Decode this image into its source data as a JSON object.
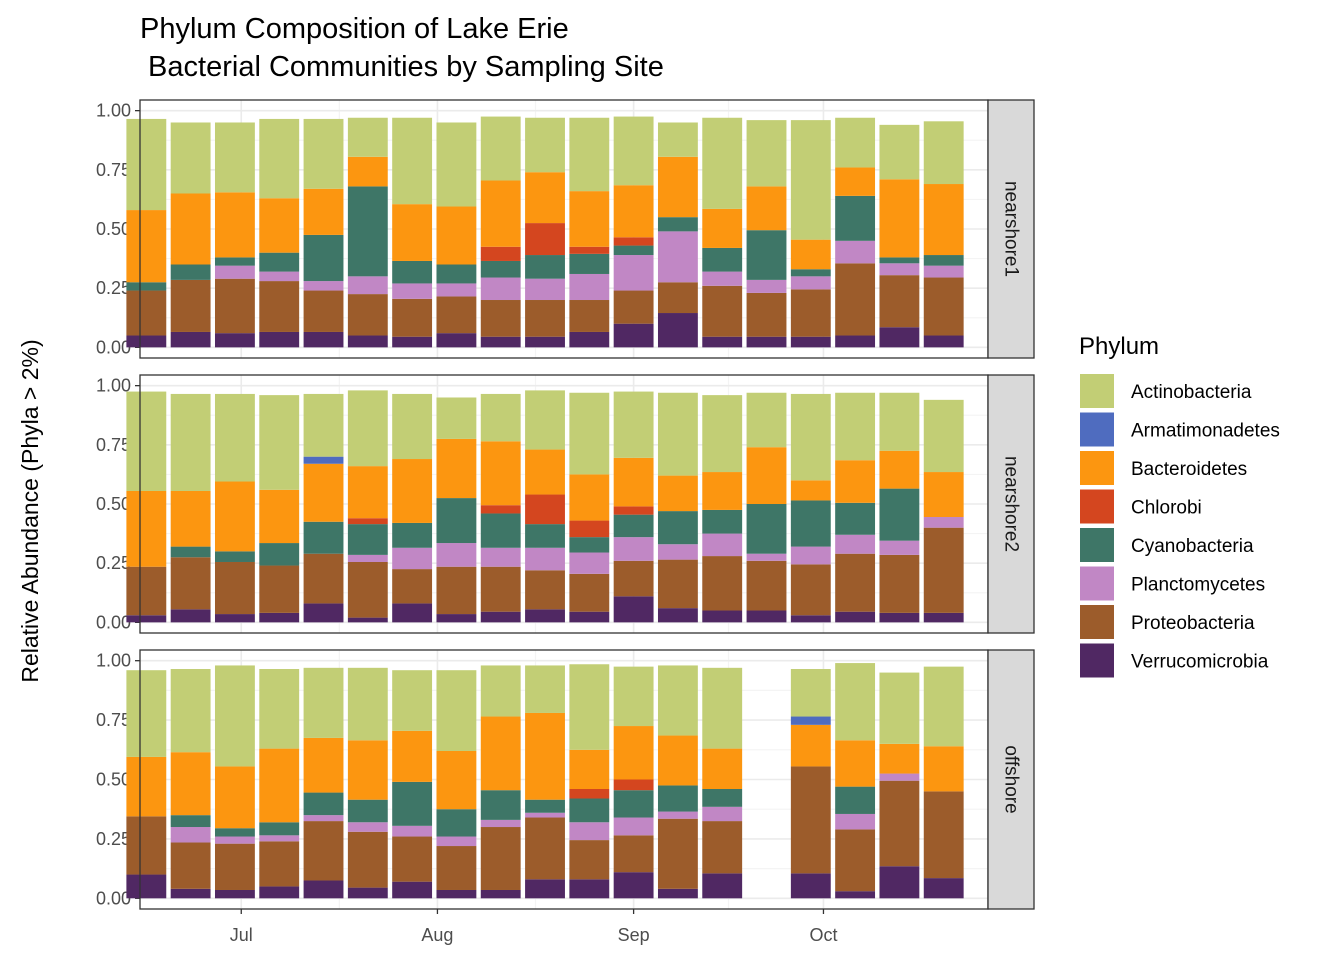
{
  "chart_data": {
    "type": "bar",
    "stacked": true,
    "title_lines": [
      "Phylum Composition of Lake Erie",
      " Bacterial Communities by Sampling Site"
    ],
    "xlabel": "",
    "ylabel": "Relative Abundance (Phyla > 2%)",
    "ylim": [
      0,
      1.0
    ],
    "yticks": [
      "0.00",
      "0.25",
      "0.50",
      "0.75",
      "1.00"
    ],
    "xaxis": {
      "type": "date",
      "range": [
        "2014-06-15",
        "2014-10-27"
      ],
      "ticks": [
        {
          "date": "2014-07-01",
          "label": "Jul"
        },
        {
          "date": "2014-08-01",
          "label": "Aug"
        },
        {
          "date": "2014-09-01",
          "label": "Sep"
        },
        {
          "date": "2014-10-01",
          "label": "Oct"
        }
      ]
    },
    "grid": true,
    "legend": {
      "title": "Phylum",
      "position": "right",
      "entries": [
        "Actinobacteria",
        "Armatimonadetes",
        "Bacteroidetes",
        "Chlorobi",
        "Cyanobacteria",
        "Planctomycetes",
        "Proteobacteria",
        "Verrucomicrobia"
      ]
    },
    "colors": {
      "Actinobacteria": "#c2ce75",
      "Armatimonadetes": "#4f6cbf",
      "Bacteroidetes": "#fc9610",
      "Chlorobi": "#d4461f",
      "Cyanobacteria": "#3e7667",
      "Planctomycetes": "#c187c5",
      "Proteobacteria": "#9c5c2b",
      "Verrucomicrobia": "#502863"
    },
    "stack_order": [
      "Verrucomicrobia",
      "Proteobacteria",
      "Planctomycetes",
      "Cyanobacteria",
      "Chlorobi",
      "Bacteroidetes",
      "Armatimonadetes",
      "Actinobacteria"
    ],
    "dates": [
      "2014-06-16",
      "2014-06-23",
      "2014-06-30",
      "2014-07-07",
      "2014-07-14",
      "2014-07-21",
      "2014-07-28",
      "2014-08-04",
      "2014-08-11",
      "2014-08-18",
      "2014-08-25",
      "2014-09-01",
      "2014-09-08",
      "2014-09-15",
      "2014-09-22",
      "2014-09-29",
      "2014-10-06",
      "2014-10-13",
      "2014-10-20"
    ],
    "facets": [
      {
        "name": "nearshore1",
        "bars": [
          {
            "Verrucomicrobia": 0.05,
            "Proteobacteria": 0.19,
            "Planctomycetes": 0.0,
            "Cyanobacteria": 0.035,
            "Chlorobi": 0.0,
            "Bacteroidetes": 0.305,
            "Armatimonadetes": 0.0,
            "Actinobacteria": 0.385
          },
          {
            "Verrucomicrobia": 0.065,
            "Proteobacteria": 0.22,
            "Planctomycetes": 0.0,
            "Cyanobacteria": 0.065,
            "Chlorobi": 0.0,
            "Bacteroidetes": 0.3,
            "Armatimonadetes": 0.0,
            "Actinobacteria": 0.3
          },
          {
            "Verrucomicrobia": 0.06,
            "Proteobacteria": 0.23,
            "Planctomycetes": 0.055,
            "Cyanobacteria": 0.035,
            "Chlorobi": 0.0,
            "Bacteroidetes": 0.275,
            "Armatimonadetes": 0.0,
            "Actinobacteria": 0.295
          },
          {
            "Verrucomicrobia": 0.065,
            "Proteobacteria": 0.215,
            "Planctomycetes": 0.04,
            "Cyanobacteria": 0.08,
            "Chlorobi": 0.0,
            "Bacteroidetes": 0.23,
            "Armatimonadetes": 0.0,
            "Actinobacteria": 0.335
          },
          {
            "Verrucomicrobia": 0.065,
            "Proteobacteria": 0.175,
            "Planctomycetes": 0.04,
            "Cyanobacteria": 0.195,
            "Chlorobi": 0.0,
            "Bacteroidetes": 0.195,
            "Armatimonadetes": 0.0,
            "Actinobacteria": 0.295
          },
          {
            "Verrucomicrobia": 0.05,
            "Proteobacteria": 0.175,
            "Planctomycetes": 0.075,
            "Cyanobacteria": 0.38,
            "Chlorobi": 0.0,
            "Bacteroidetes": 0.125,
            "Armatimonadetes": 0.0,
            "Actinobacteria": 0.165
          },
          {
            "Verrucomicrobia": 0.045,
            "Proteobacteria": 0.16,
            "Planctomycetes": 0.065,
            "Cyanobacteria": 0.095,
            "Chlorobi": 0.0,
            "Bacteroidetes": 0.24,
            "Armatimonadetes": 0.0,
            "Actinobacteria": 0.365
          },
          {
            "Verrucomicrobia": 0.06,
            "Proteobacteria": 0.155,
            "Planctomycetes": 0.055,
            "Cyanobacteria": 0.08,
            "Chlorobi": 0.0,
            "Bacteroidetes": 0.245,
            "Armatimonadetes": 0.0,
            "Actinobacteria": 0.355
          },
          {
            "Verrucomicrobia": 0.045,
            "Proteobacteria": 0.155,
            "Planctomycetes": 0.095,
            "Cyanobacteria": 0.07,
            "Chlorobi": 0.06,
            "Bacteroidetes": 0.28,
            "Armatimonadetes": 0.0,
            "Actinobacteria": 0.27
          },
          {
            "Verrucomicrobia": 0.045,
            "Proteobacteria": 0.155,
            "Planctomycetes": 0.09,
            "Cyanobacteria": 0.1,
            "Chlorobi": 0.135,
            "Bacteroidetes": 0.215,
            "Armatimonadetes": 0.0,
            "Actinobacteria": 0.23
          },
          {
            "Verrucomicrobia": 0.065,
            "Proteobacteria": 0.135,
            "Planctomycetes": 0.11,
            "Cyanobacteria": 0.085,
            "Chlorobi": 0.03,
            "Bacteroidetes": 0.235,
            "Armatimonadetes": 0.0,
            "Actinobacteria": 0.31
          },
          {
            "Verrucomicrobia": 0.1,
            "Proteobacteria": 0.14,
            "Planctomycetes": 0.15,
            "Cyanobacteria": 0.04,
            "Chlorobi": 0.035,
            "Bacteroidetes": 0.22,
            "Armatimonadetes": 0.0,
            "Actinobacteria": 0.29
          },
          {
            "Verrucomicrobia": 0.145,
            "Proteobacteria": 0.13,
            "Planctomycetes": 0.215,
            "Cyanobacteria": 0.06,
            "Chlorobi": 0.0,
            "Bacteroidetes": 0.255,
            "Armatimonadetes": 0.0,
            "Actinobacteria": 0.145
          },
          {
            "Verrucomicrobia": 0.045,
            "Proteobacteria": 0.215,
            "Planctomycetes": 0.06,
            "Cyanobacteria": 0.1,
            "Chlorobi": 0.0,
            "Bacteroidetes": 0.165,
            "Armatimonadetes": 0.0,
            "Actinobacteria": 0.385
          },
          {
            "Verrucomicrobia": 0.045,
            "Proteobacteria": 0.185,
            "Planctomycetes": 0.055,
            "Cyanobacteria": 0.21,
            "Chlorobi": 0.0,
            "Bacteroidetes": 0.185,
            "Armatimonadetes": 0.0,
            "Actinobacteria": 0.28
          },
          {
            "Verrucomicrobia": 0.045,
            "Proteobacteria": 0.2,
            "Planctomycetes": 0.055,
            "Cyanobacteria": 0.03,
            "Chlorobi": 0.0,
            "Bacteroidetes": 0.125,
            "Armatimonadetes": 0.0,
            "Actinobacteria": 0.505
          },
          {
            "Verrucomicrobia": 0.05,
            "Proteobacteria": 0.305,
            "Planctomycetes": 0.095,
            "Cyanobacteria": 0.19,
            "Chlorobi": 0.0,
            "Bacteroidetes": 0.12,
            "Armatimonadetes": 0.0,
            "Actinobacteria": 0.21
          },
          {
            "Verrucomicrobia": 0.085,
            "Proteobacteria": 0.22,
            "Planctomycetes": 0.05,
            "Cyanobacteria": 0.025,
            "Chlorobi": 0.0,
            "Bacteroidetes": 0.33,
            "Armatimonadetes": 0.0,
            "Actinobacteria": 0.23
          },
          {
            "Verrucomicrobia": 0.05,
            "Proteobacteria": 0.245,
            "Planctomycetes": 0.05,
            "Cyanobacteria": 0.045,
            "Chlorobi": 0.0,
            "Bacteroidetes": 0.3,
            "Armatimonadetes": 0.0,
            "Actinobacteria": 0.265
          }
        ]
      },
      {
        "name": "nearshore2",
        "bars": [
          {
            "Verrucomicrobia": 0.03,
            "Proteobacteria": 0.205,
            "Planctomycetes": 0.0,
            "Cyanobacteria": 0.0,
            "Chlorobi": 0.0,
            "Bacteroidetes": 0.32,
            "Armatimonadetes": 0.0,
            "Actinobacteria": 0.42
          },
          {
            "Verrucomicrobia": 0.055,
            "Proteobacteria": 0.22,
            "Planctomycetes": 0.0,
            "Cyanobacteria": 0.045,
            "Chlorobi": 0.0,
            "Bacteroidetes": 0.235,
            "Armatimonadetes": 0.0,
            "Actinobacteria": 0.41
          },
          {
            "Verrucomicrobia": 0.035,
            "Proteobacteria": 0.22,
            "Planctomycetes": 0.0,
            "Cyanobacteria": 0.045,
            "Chlorobi": 0.0,
            "Bacteroidetes": 0.295,
            "Armatimonadetes": 0.0,
            "Actinobacteria": 0.37
          },
          {
            "Verrucomicrobia": 0.04,
            "Proteobacteria": 0.2,
            "Planctomycetes": 0.0,
            "Cyanobacteria": 0.095,
            "Chlorobi": 0.0,
            "Bacteroidetes": 0.225,
            "Armatimonadetes": 0.0,
            "Actinobacteria": 0.4
          },
          {
            "Verrucomicrobia": 0.08,
            "Proteobacteria": 0.21,
            "Planctomycetes": 0.0,
            "Cyanobacteria": 0.135,
            "Chlorobi": 0.0,
            "Bacteroidetes": 0.245,
            "Armatimonadetes": 0.03,
            "Actinobacteria": 0.265
          },
          {
            "Verrucomicrobia": 0.02,
            "Proteobacteria": 0.235,
            "Planctomycetes": 0.03,
            "Cyanobacteria": 0.13,
            "Chlorobi": 0.025,
            "Bacteroidetes": 0.22,
            "Armatimonadetes": 0.0,
            "Actinobacteria": 0.32
          },
          {
            "Verrucomicrobia": 0.08,
            "Proteobacteria": 0.145,
            "Planctomycetes": 0.09,
            "Cyanobacteria": 0.105,
            "Chlorobi": 0.0,
            "Bacteroidetes": 0.27,
            "Armatimonadetes": 0.0,
            "Actinobacteria": 0.275
          },
          {
            "Verrucomicrobia": 0.035,
            "Proteobacteria": 0.2,
            "Planctomycetes": 0.1,
            "Cyanobacteria": 0.19,
            "Chlorobi": 0.0,
            "Bacteroidetes": 0.25,
            "Armatimonadetes": 0.0,
            "Actinobacteria": 0.175
          },
          {
            "Verrucomicrobia": 0.045,
            "Proteobacteria": 0.19,
            "Planctomycetes": 0.08,
            "Cyanobacteria": 0.145,
            "Chlorobi": 0.035,
            "Bacteroidetes": 0.27,
            "Armatimonadetes": 0.0,
            "Actinobacteria": 0.2
          },
          {
            "Verrucomicrobia": 0.055,
            "Proteobacteria": 0.165,
            "Planctomycetes": 0.095,
            "Cyanobacteria": 0.1,
            "Chlorobi": 0.125,
            "Bacteroidetes": 0.19,
            "Armatimonadetes": 0.0,
            "Actinobacteria": 0.25
          },
          {
            "Verrucomicrobia": 0.045,
            "Proteobacteria": 0.16,
            "Planctomycetes": 0.09,
            "Cyanobacteria": 0.065,
            "Chlorobi": 0.07,
            "Bacteroidetes": 0.195,
            "Armatimonadetes": 0.0,
            "Actinobacteria": 0.345
          },
          {
            "Verrucomicrobia": 0.11,
            "Proteobacteria": 0.15,
            "Planctomycetes": 0.1,
            "Cyanobacteria": 0.095,
            "Chlorobi": 0.035,
            "Bacteroidetes": 0.205,
            "Armatimonadetes": 0.0,
            "Actinobacteria": 0.28
          },
          {
            "Verrucomicrobia": 0.06,
            "Proteobacteria": 0.205,
            "Planctomycetes": 0.065,
            "Cyanobacteria": 0.14,
            "Chlorobi": 0.0,
            "Bacteroidetes": 0.15,
            "Armatimonadetes": 0.0,
            "Actinobacteria": 0.35
          },
          {
            "Verrucomicrobia": 0.05,
            "Proteobacteria": 0.23,
            "Planctomycetes": 0.095,
            "Cyanobacteria": 0.1,
            "Chlorobi": 0.0,
            "Bacteroidetes": 0.16,
            "Armatimonadetes": 0.0,
            "Actinobacteria": 0.325
          },
          {
            "Verrucomicrobia": 0.05,
            "Proteobacteria": 0.21,
            "Planctomycetes": 0.03,
            "Cyanobacteria": 0.21,
            "Chlorobi": 0.0,
            "Bacteroidetes": 0.24,
            "Armatimonadetes": 0.0,
            "Actinobacteria": 0.23
          },
          {
            "Verrucomicrobia": 0.03,
            "Proteobacteria": 0.215,
            "Planctomycetes": 0.075,
            "Cyanobacteria": 0.195,
            "Chlorobi": 0.0,
            "Bacteroidetes": 0.085,
            "Armatimonadetes": 0.0,
            "Actinobacteria": 0.365
          },
          {
            "Verrucomicrobia": 0.045,
            "Proteobacteria": 0.245,
            "Planctomycetes": 0.08,
            "Cyanobacteria": 0.135,
            "Chlorobi": 0.0,
            "Bacteroidetes": 0.18,
            "Armatimonadetes": 0.0,
            "Actinobacteria": 0.285
          },
          {
            "Verrucomicrobia": 0.04,
            "Proteobacteria": 0.245,
            "Planctomycetes": 0.06,
            "Cyanobacteria": 0.22,
            "Chlorobi": 0.0,
            "Bacteroidetes": 0.16,
            "Armatimonadetes": 0.0,
            "Actinobacteria": 0.245
          },
          {
            "Verrucomicrobia": 0.04,
            "Proteobacteria": 0.36,
            "Planctomycetes": 0.045,
            "Cyanobacteria": 0.0,
            "Chlorobi": 0.0,
            "Bacteroidetes": 0.19,
            "Armatimonadetes": 0.0,
            "Actinobacteria": 0.305
          }
        ]
      },
      {
        "name": "offshore",
        "bars": [
          {
            "Verrucomicrobia": 0.1,
            "Proteobacteria": 0.245,
            "Planctomycetes": 0.0,
            "Cyanobacteria": 0.0,
            "Chlorobi": 0.0,
            "Bacteroidetes": 0.25,
            "Armatimonadetes": 0.0,
            "Actinobacteria": 0.365
          },
          {
            "Verrucomicrobia": 0.04,
            "Proteobacteria": 0.195,
            "Planctomycetes": 0.065,
            "Cyanobacteria": 0.05,
            "Chlorobi": 0.0,
            "Bacteroidetes": 0.265,
            "Armatimonadetes": 0.0,
            "Actinobacteria": 0.35
          },
          {
            "Verrucomicrobia": 0.035,
            "Proteobacteria": 0.195,
            "Planctomycetes": 0.03,
            "Cyanobacteria": 0.035,
            "Chlorobi": 0.0,
            "Bacteroidetes": 0.26,
            "Armatimonadetes": 0.0,
            "Actinobacteria": 0.425
          },
          {
            "Verrucomicrobia": 0.05,
            "Proteobacteria": 0.19,
            "Planctomycetes": 0.025,
            "Cyanobacteria": 0.055,
            "Chlorobi": 0.0,
            "Bacteroidetes": 0.31,
            "Armatimonadetes": 0.0,
            "Actinobacteria": 0.335
          },
          {
            "Verrucomicrobia": 0.075,
            "Proteobacteria": 0.25,
            "Planctomycetes": 0.025,
            "Cyanobacteria": 0.095,
            "Chlorobi": 0.0,
            "Bacteroidetes": 0.23,
            "Armatimonadetes": 0.0,
            "Actinobacteria": 0.295
          },
          {
            "Verrucomicrobia": 0.045,
            "Proteobacteria": 0.235,
            "Planctomycetes": 0.04,
            "Cyanobacteria": 0.095,
            "Chlorobi": 0.0,
            "Bacteroidetes": 0.25,
            "Armatimonadetes": 0.0,
            "Actinobacteria": 0.305
          },
          {
            "Verrucomicrobia": 0.07,
            "Proteobacteria": 0.19,
            "Planctomycetes": 0.045,
            "Cyanobacteria": 0.185,
            "Chlorobi": 0.0,
            "Bacteroidetes": 0.215,
            "Armatimonadetes": 0.0,
            "Actinobacteria": 0.255
          },
          {
            "Verrucomicrobia": 0.035,
            "Proteobacteria": 0.185,
            "Planctomycetes": 0.04,
            "Cyanobacteria": 0.115,
            "Chlorobi": 0.0,
            "Bacteroidetes": 0.245,
            "Armatimonadetes": 0.0,
            "Actinobacteria": 0.34
          },
          {
            "Verrucomicrobia": 0.035,
            "Proteobacteria": 0.265,
            "Planctomycetes": 0.03,
            "Cyanobacteria": 0.125,
            "Chlorobi": 0.0,
            "Bacteroidetes": 0.31,
            "Armatimonadetes": 0.0,
            "Actinobacteria": 0.215
          },
          {
            "Verrucomicrobia": 0.08,
            "Proteobacteria": 0.26,
            "Planctomycetes": 0.02,
            "Cyanobacteria": 0.055,
            "Chlorobi": 0.0,
            "Bacteroidetes": 0.365,
            "Armatimonadetes": 0.0,
            "Actinobacteria": 0.2
          },
          {
            "Verrucomicrobia": 0.08,
            "Proteobacteria": 0.165,
            "Planctomycetes": 0.075,
            "Cyanobacteria": 0.1,
            "Chlorobi": 0.04,
            "Bacteroidetes": 0.165,
            "Armatimonadetes": 0.0,
            "Actinobacteria": 0.36
          },
          {
            "Verrucomicrobia": 0.11,
            "Proteobacteria": 0.155,
            "Planctomycetes": 0.075,
            "Cyanobacteria": 0.115,
            "Chlorobi": 0.045,
            "Bacteroidetes": 0.225,
            "Armatimonadetes": 0.0,
            "Actinobacteria": 0.25
          },
          {
            "Verrucomicrobia": 0.04,
            "Proteobacteria": 0.295,
            "Planctomycetes": 0.03,
            "Cyanobacteria": 0.11,
            "Chlorobi": 0.0,
            "Bacteroidetes": 0.21,
            "Armatimonadetes": 0.0,
            "Actinobacteria": 0.295
          },
          {
            "Verrucomicrobia": 0.105,
            "Proteobacteria": 0.22,
            "Planctomycetes": 0.06,
            "Cyanobacteria": 0.075,
            "Chlorobi": 0.0,
            "Bacteroidetes": 0.17,
            "Armatimonadetes": 0.0,
            "Actinobacteria": 0.34
          },
          null,
          {
            "Verrucomicrobia": 0.105,
            "Proteobacteria": 0.45,
            "Planctomycetes": 0.0,
            "Cyanobacteria": 0.0,
            "Chlorobi": 0.0,
            "Bacteroidetes": 0.175,
            "Armatimonadetes": 0.035,
            "Actinobacteria": 0.2
          },
          {
            "Verrucomicrobia": 0.03,
            "Proteobacteria": 0.26,
            "Planctomycetes": 0.065,
            "Cyanobacteria": 0.115,
            "Chlorobi": 0.0,
            "Bacteroidetes": 0.195,
            "Armatimonadetes": 0.0,
            "Actinobacteria": 0.325
          },
          {
            "Verrucomicrobia": 0.135,
            "Proteobacteria": 0.36,
            "Planctomycetes": 0.03,
            "Cyanobacteria": 0.0,
            "Chlorobi": 0.0,
            "Bacteroidetes": 0.125,
            "Armatimonadetes": 0.0,
            "Actinobacteria": 0.3
          },
          {
            "Verrucomicrobia": 0.085,
            "Proteobacteria": 0.365,
            "Planctomycetes": 0.0,
            "Cyanobacteria": 0.0,
            "Chlorobi": 0.0,
            "Bacteroidetes": 0.19,
            "Armatimonadetes": 0.0,
            "Actinobacteria": 0.335
          }
        ]
      }
    ]
  }
}
